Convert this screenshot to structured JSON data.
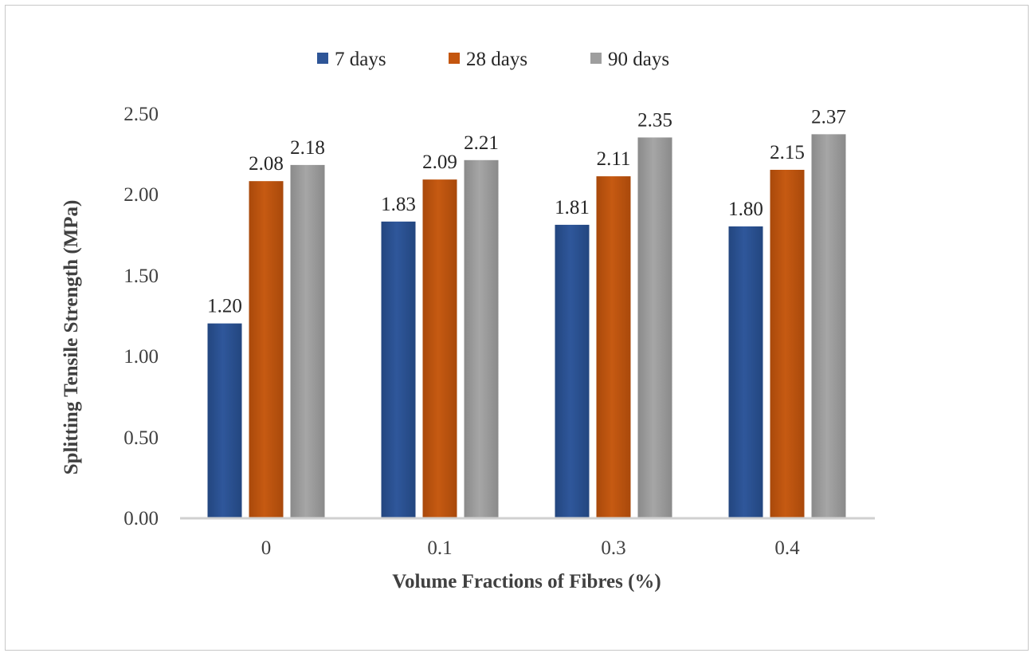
{
  "chart_data": {
    "type": "bar",
    "title": "",
    "xlabel": "Volume Fractions of Fibres (%)",
    "ylabel": "Splitting Tensile Strength (MPa)",
    "ylim": [
      0,
      2.5
    ],
    "yticks": [
      "0.00",
      "0.50",
      "1.00",
      "1.50",
      "2.00",
      "2.50"
    ],
    "categories": [
      "0",
      "0.1",
      "0.3",
      "0.4"
    ],
    "legend_position": "top",
    "grid": false,
    "series": [
      {
        "name": "7 days",
        "color": "#2E5597",
        "values": [
          1.2,
          1.83,
          1.81,
          1.8
        ],
        "labels": [
          "1.20",
          "1.83",
          "1.81",
          "1.80"
        ]
      },
      {
        "name": "28 days",
        "color": "#C4560F",
        "values": [
          2.08,
          2.09,
          2.11,
          2.15
        ],
        "labels": [
          "2.08",
          "2.09",
          "2.11",
          "2.15"
        ]
      },
      {
        "name": "90 days",
        "color": "#9E9E9E",
        "values": [
          2.18,
          2.21,
          2.35,
          2.37
        ],
        "labels": [
          "2.18",
          "2.21",
          "2.35",
          "2.37"
        ]
      }
    ]
  }
}
